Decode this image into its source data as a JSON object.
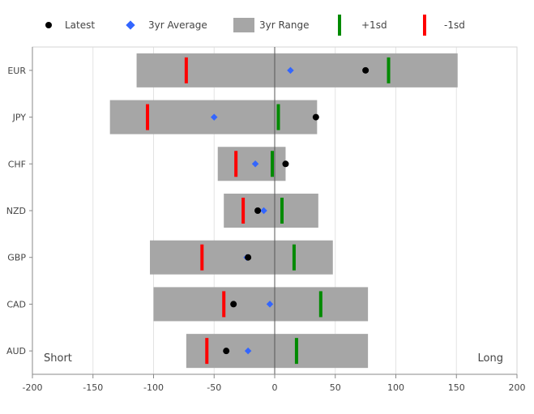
{
  "legend": {
    "latest": "Latest",
    "avg": "3yr Average",
    "range": "3yr Range",
    "plus1sd": "+1sd",
    "minus1sd": "-1sd"
  },
  "chart_data": {
    "type": "bar",
    "orientation": "horizontal",
    "categories": [
      "EUR",
      "JPY",
      "CHF",
      "NZD",
      "GBP",
      "CAD",
      "AUD"
    ],
    "range_min": [
      -114,
      -136,
      -47,
      -42,
      -103,
      -100,
      -73
    ],
    "range_max": [
      151,
      35,
      9,
      36,
      48,
      77,
      77
    ],
    "latest": [
      75,
      34,
      9,
      -14,
      -22,
      -34,
      -40
    ],
    "average": [
      13,
      -50,
      -16,
      -9,
      -23,
      -4,
      -22
    ],
    "minus1sd": [
      -73,
      -105,
      -32,
      -26,
      -60,
      -42,
      -56
    ],
    "plus1sd": [
      94,
      3,
      -2,
      6,
      16,
      38,
      18
    ],
    "xlim": [
      -200,
      200
    ],
    "xticks": [
      -200,
      -150,
      -100,
      -50,
      0,
      50,
      100,
      150,
      200
    ],
    "grid": true,
    "legend_position": "top",
    "annotations": {
      "left": "Short",
      "right": "Long"
    },
    "colors": {
      "range": "#a6a6a6",
      "latest": "#000000",
      "average": "#3366ff",
      "plus1sd": "#008a00",
      "minus1sd": "#ff0000",
      "grid": "#e3e3e3",
      "axis": "#888888"
    }
  }
}
